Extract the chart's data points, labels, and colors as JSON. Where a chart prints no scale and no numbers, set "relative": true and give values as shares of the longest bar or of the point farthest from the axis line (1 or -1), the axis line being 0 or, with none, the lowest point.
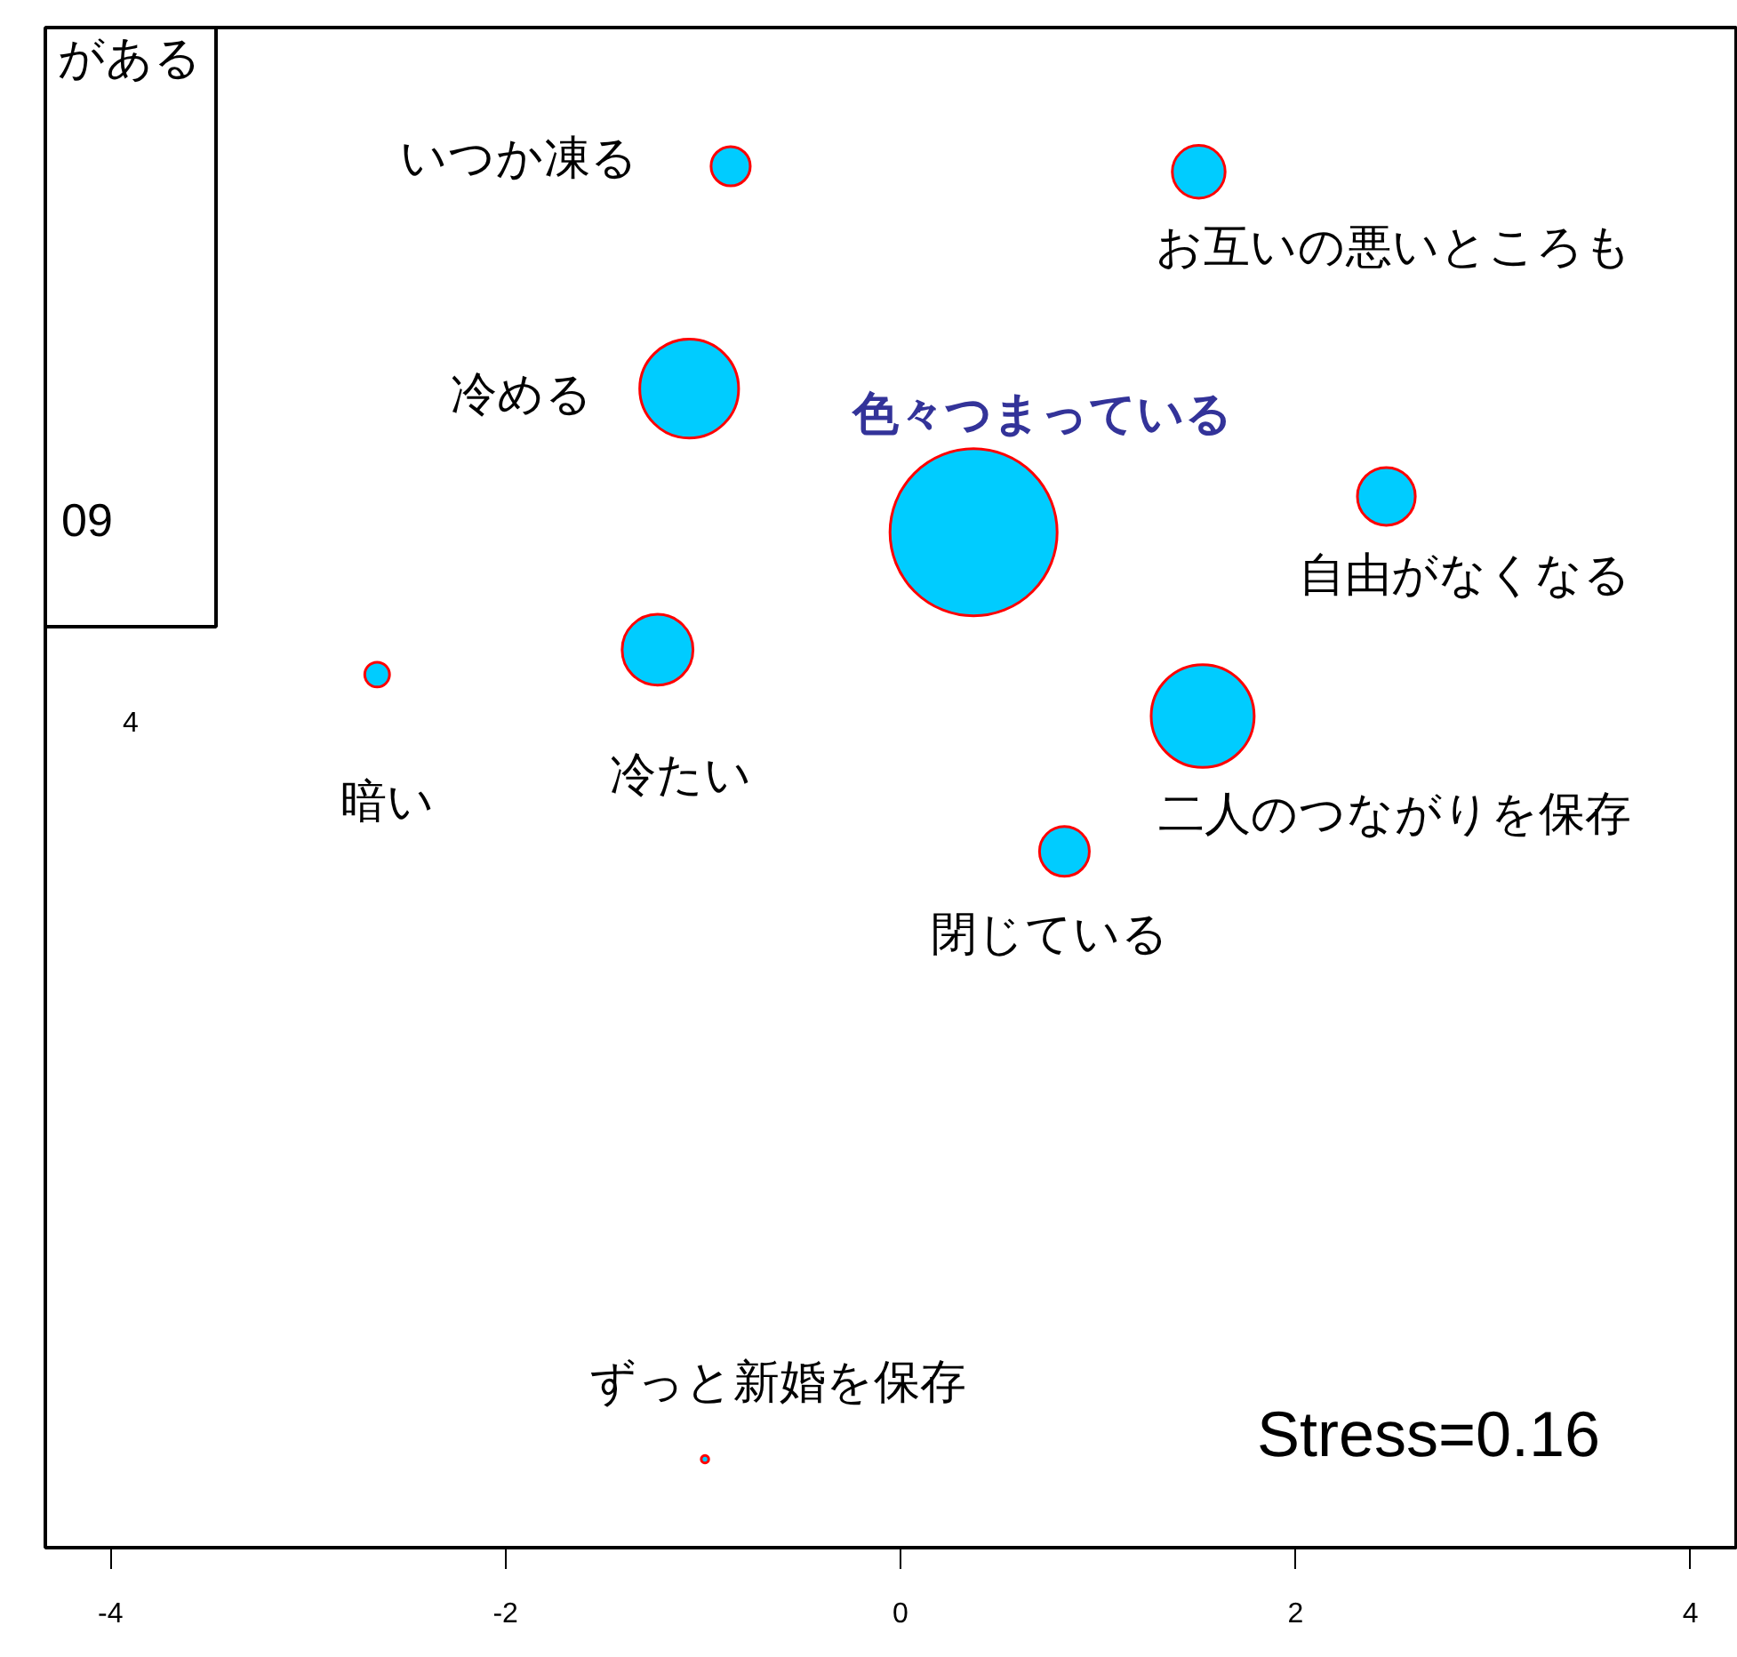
{
  "chart_data": {
    "type": "bubble",
    "relative": true,
    "x": [
      -0.86,
      1.51,
      -1.07,
      0.37,
      2.46,
      -2.65,
      -1.23,
      1.53,
      0.83,
      -0.99
    ],
    "series": [
      {
        "color": "#00ccff",
        "values": [
          1.0,
          0.996,
          0.839,
          0.735,
          0.761,
          0.632,
          0.65,
          0.602,
          0.504,
          0.064
        ],
        "sizes": [
          0.055,
          0.1,
          0.35,
          1.0,
          0.12,
          0.022,
          0.18,
          0.38,
          0.089,
          0.002
        ]
      }
    ],
    "xlim": [
      -4.33,
      4.24
    ],
    "xticks": [
      -4,
      -2,
      0,
      2,
      4
    ],
    "annotations": [
      {
        "text": "いつか凍る",
        "x": -0.86,
        "y": 1.0
      },
      {
        "text": "お互いの悪いところも",
        "x": 1.51,
        "y": 0.996
      },
      {
        "text": "冷める",
        "x": -1.07,
        "y": 0.839
      },
      {
        "text": "色々つまっている",
        "x": 0.37,
        "y": 0.735
      },
      {
        "text": "自由がなくなる",
        "x": 2.46,
        "y": 0.761
      },
      {
        "text": "暗い",
        "x": -2.65,
        "y": 0.632
      },
      {
        "text": "冷たい",
        "x": -1.23,
        "y": 0.65
      },
      {
        "text": "二人のつながりを保存",
        "x": 1.53,
        "y": 0.602
      },
      {
        "text": "閉じている",
        "x": 0.83,
        "y": 0.504
      },
      {
        "text": "ずっと新婚を保存",
        "x": -0.99,
        "y": 0.064
      },
      "Stress=0.16",
      "がある",
      "09",
      "4"
    ],
    "grid": false
  }
}
